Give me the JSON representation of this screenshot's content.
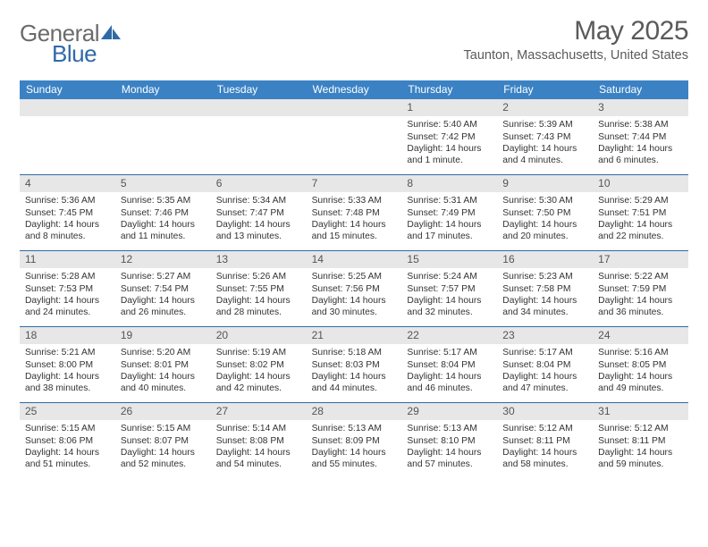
{
  "logo": {
    "general": "General",
    "blue": "Blue"
  },
  "title": "May 2025",
  "subtitle": "Taunton, Massachusetts, United States",
  "header_bg": "#3b82c4",
  "week_border": "#2f6aa8",
  "daynum_bg": "#e7e7e7",
  "day_names": [
    "Sunday",
    "Monday",
    "Tuesday",
    "Wednesday",
    "Thursday",
    "Friday",
    "Saturday"
  ],
  "weeks": [
    [
      {
        "empty": true
      },
      {
        "empty": true
      },
      {
        "empty": true
      },
      {
        "empty": true
      },
      {
        "day": "1",
        "sunrise": "5:40 AM",
        "sunset": "7:42 PM",
        "daylight": "14 hours and 1 minute."
      },
      {
        "day": "2",
        "sunrise": "5:39 AM",
        "sunset": "7:43 PM",
        "daylight": "14 hours and 4 minutes."
      },
      {
        "day": "3",
        "sunrise": "5:38 AM",
        "sunset": "7:44 PM",
        "daylight": "14 hours and 6 minutes."
      }
    ],
    [
      {
        "day": "4",
        "sunrise": "5:36 AM",
        "sunset": "7:45 PM",
        "daylight": "14 hours and 8 minutes."
      },
      {
        "day": "5",
        "sunrise": "5:35 AM",
        "sunset": "7:46 PM",
        "daylight": "14 hours and 11 minutes."
      },
      {
        "day": "6",
        "sunrise": "5:34 AM",
        "sunset": "7:47 PM",
        "daylight": "14 hours and 13 minutes."
      },
      {
        "day": "7",
        "sunrise": "5:33 AM",
        "sunset": "7:48 PM",
        "daylight": "14 hours and 15 minutes."
      },
      {
        "day": "8",
        "sunrise": "5:31 AM",
        "sunset": "7:49 PM",
        "daylight": "14 hours and 17 minutes."
      },
      {
        "day": "9",
        "sunrise": "5:30 AM",
        "sunset": "7:50 PM",
        "daylight": "14 hours and 20 minutes."
      },
      {
        "day": "10",
        "sunrise": "5:29 AM",
        "sunset": "7:51 PM",
        "daylight": "14 hours and 22 minutes."
      }
    ],
    [
      {
        "day": "11",
        "sunrise": "5:28 AM",
        "sunset": "7:53 PM",
        "daylight": "14 hours and 24 minutes."
      },
      {
        "day": "12",
        "sunrise": "5:27 AM",
        "sunset": "7:54 PM",
        "daylight": "14 hours and 26 minutes."
      },
      {
        "day": "13",
        "sunrise": "5:26 AM",
        "sunset": "7:55 PM",
        "daylight": "14 hours and 28 minutes."
      },
      {
        "day": "14",
        "sunrise": "5:25 AM",
        "sunset": "7:56 PM",
        "daylight": "14 hours and 30 minutes."
      },
      {
        "day": "15",
        "sunrise": "5:24 AM",
        "sunset": "7:57 PM",
        "daylight": "14 hours and 32 minutes."
      },
      {
        "day": "16",
        "sunrise": "5:23 AM",
        "sunset": "7:58 PM",
        "daylight": "14 hours and 34 minutes."
      },
      {
        "day": "17",
        "sunrise": "5:22 AM",
        "sunset": "7:59 PM",
        "daylight": "14 hours and 36 minutes."
      }
    ],
    [
      {
        "day": "18",
        "sunrise": "5:21 AM",
        "sunset": "8:00 PM",
        "daylight": "14 hours and 38 minutes."
      },
      {
        "day": "19",
        "sunrise": "5:20 AM",
        "sunset": "8:01 PM",
        "daylight": "14 hours and 40 minutes."
      },
      {
        "day": "20",
        "sunrise": "5:19 AM",
        "sunset": "8:02 PM",
        "daylight": "14 hours and 42 minutes."
      },
      {
        "day": "21",
        "sunrise": "5:18 AM",
        "sunset": "8:03 PM",
        "daylight": "14 hours and 44 minutes."
      },
      {
        "day": "22",
        "sunrise": "5:17 AM",
        "sunset": "8:04 PM",
        "daylight": "14 hours and 46 minutes."
      },
      {
        "day": "23",
        "sunrise": "5:17 AM",
        "sunset": "8:04 PM",
        "daylight": "14 hours and 47 minutes."
      },
      {
        "day": "24",
        "sunrise": "5:16 AM",
        "sunset": "8:05 PM",
        "daylight": "14 hours and 49 minutes."
      }
    ],
    [
      {
        "day": "25",
        "sunrise": "5:15 AM",
        "sunset": "8:06 PM",
        "daylight": "14 hours and 51 minutes."
      },
      {
        "day": "26",
        "sunrise": "5:15 AM",
        "sunset": "8:07 PM",
        "daylight": "14 hours and 52 minutes."
      },
      {
        "day": "27",
        "sunrise": "5:14 AM",
        "sunset": "8:08 PM",
        "daylight": "14 hours and 54 minutes."
      },
      {
        "day": "28",
        "sunrise": "5:13 AM",
        "sunset": "8:09 PM",
        "daylight": "14 hours and 55 minutes."
      },
      {
        "day": "29",
        "sunrise": "5:13 AM",
        "sunset": "8:10 PM",
        "daylight": "14 hours and 57 minutes."
      },
      {
        "day": "30",
        "sunrise": "5:12 AM",
        "sunset": "8:11 PM",
        "daylight": "14 hours and 58 minutes."
      },
      {
        "day": "31",
        "sunrise": "5:12 AM",
        "sunset": "8:11 PM",
        "daylight": "14 hours and 59 minutes."
      }
    ]
  ]
}
